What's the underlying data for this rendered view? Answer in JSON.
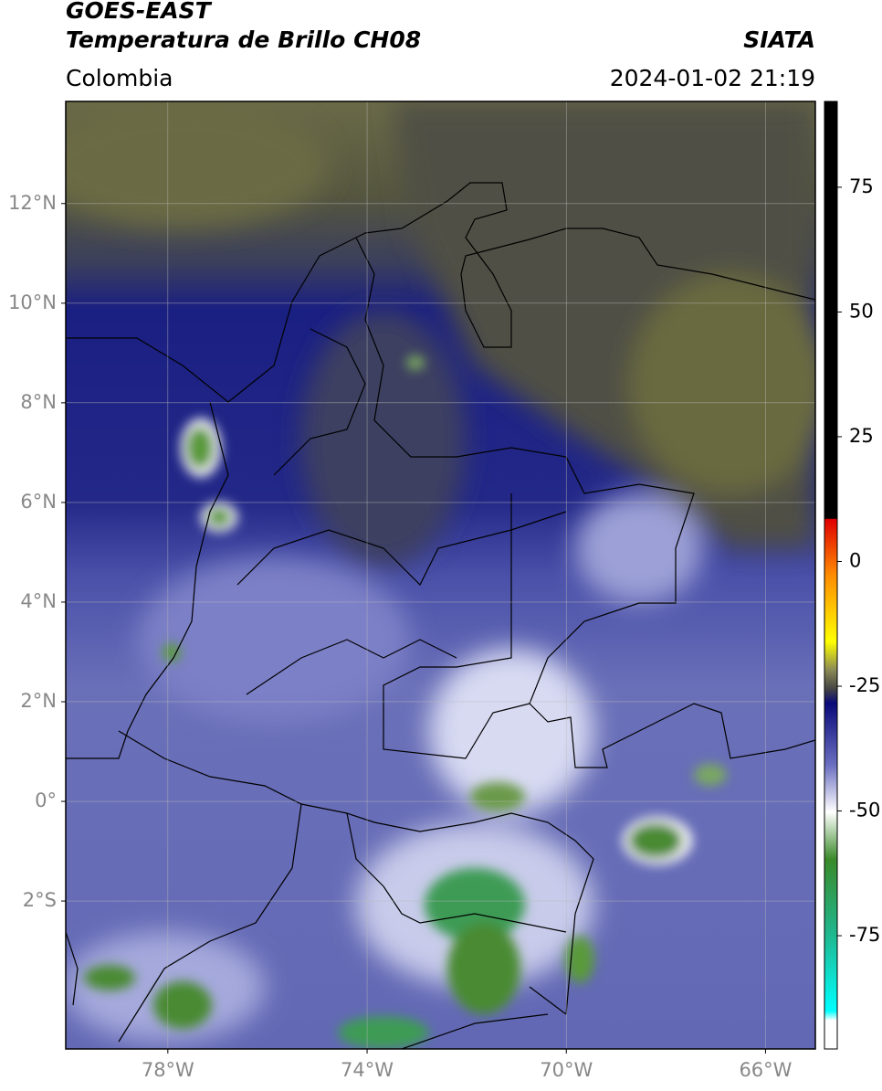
{
  "header": {
    "source": "GOES-EAST",
    "product": "Temperatura de Brillo CH08",
    "agency": "SIATA",
    "region": "Colombia",
    "datetime": "2024-01-02 21:19"
  },
  "map": {
    "lon_range": [
      -80.05,
      -65
    ],
    "lat_range": [
      -4.97,
      14.05
    ],
    "lat_ticks": [
      {
        "value": 12,
        "label": "12°N"
      },
      {
        "value": 10,
        "label": "10°N"
      },
      {
        "value": 8,
        "label": "8°N"
      },
      {
        "value": 6,
        "label": "6°N"
      },
      {
        "value": 4,
        "label": "4°N"
      },
      {
        "value": 2,
        "label": "2°N"
      },
      {
        "value": 0,
        "label": "0°"
      },
      {
        "value": -2,
        "label": "2°S"
      }
    ],
    "lon_ticks": [
      {
        "value": -78,
        "label": "78°W"
      },
      {
        "value": -74,
        "label": "74°W"
      },
      {
        "value": -70,
        "label": "70°W"
      },
      {
        "value": -66,
        "label": "66°W"
      }
    ],
    "grid": true
  },
  "colorbar": {
    "range": [
      -97.7,
      92.2
    ],
    "ticks": [
      75,
      50,
      25,
      0,
      -25,
      -50,
      -75
    ]
  }
}
